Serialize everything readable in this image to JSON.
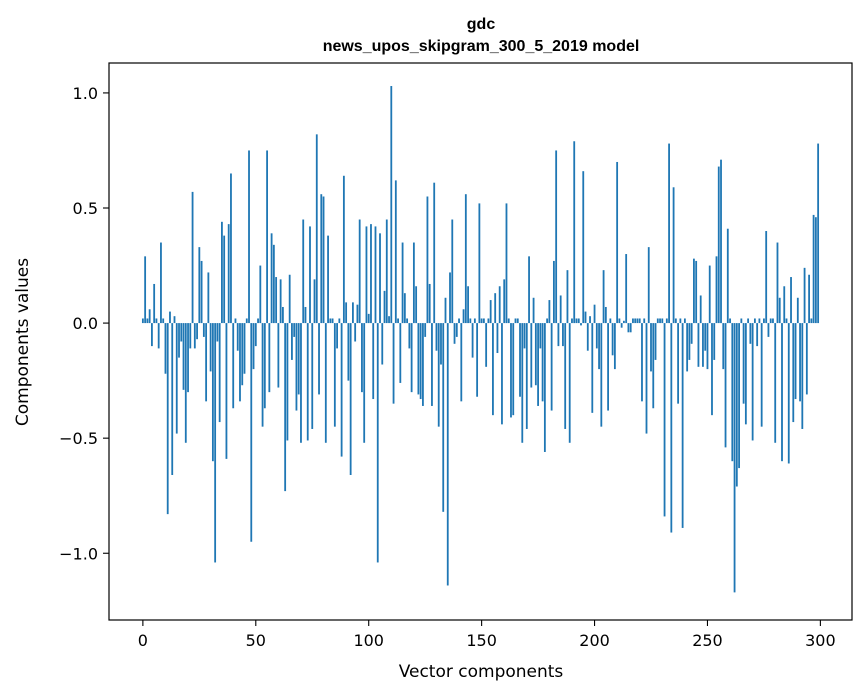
{
  "chart_data": {
    "type": "bar",
    "title_line1": "gdc",
    "title_line2": "news_upos_skipgram_300_5_2019 model",
    "xlabel": "Vector components",
    "ylabel": "Components values",
    "xlim": [
      -15,
      314
    ],
    "ylim": [
      -1.29,
      1.13
    ],
    "xticks": [
      0,
      50,
      100,
      150,
      200,
      250,
      300
    ],
    "xtick_labels": [
      "0",
      "50",
      "100",
      "150",
      "200",
      "250",
      "300"
    ],
    "yticks": [
      -1.0,
      -0.5,
      0.0,
      0.5,
      1.0
    ],
    "ytick_labels": [
      "−1.0",
      "−0.5",
      "0.0",
      "0.5",
      "1.0"
    ],
    "bar_color": "#1f77b4",
    "values": [
      0.02,
      0.29,
      0.02,
      0.06,
      -0.1,
      0.17,
      0.02,
      -0.11,
      0.35,
      0.02,
      -0.22,
      -0.83,
      0.05,
      -0.66,
      0.03,
      -0.48,
      -0.15,
      -0.08,
      -0.29,
      -0.52,
      -0.3,
      -0.11,
      0.57,
      -0.11,
      -0.07,
      0.33,
      0.27,
      -0.06,
      -0.34,
      0.22,
      -0.21,
      -0.6,
      -1.04,
      -0.08,
      -0.43,
      0.44,
      0.38,
      -0.59,
      0.43,
      0.65,
      -0.37,
      0.02,
      -0.12,
      -0.34,
      -0.27,
      -0.22,
      0.02,
      0.75,
      -0.95,
      -0.2,
      -0.1,
      0.02,
      0.25,
      -0.45,
      -0.37,
      0.75,
      -0.3,
      0.39,
      0.34,
      0.2,
      -0.28,
      0.19,
      0.07,
      -0.73,
      -0.51,
      0.21,
      -0.16,
      -0.06,
      -0.38,
      -0.31,
      -0.52,
      0.45,
      0.07,
      -0.51,
      0.42,
      -0.46,
      0.19,
      0.82,
      -0.31,
      0.56,
      0.55,
      -0.52,
      0.38,
      0.02,
      0.02,
      -0.45,
      -0.11,
      0.02,
      -0.58,
      0.64,
      0.09,
      -0.25,
      -0.66,
      0.09,
      -0.08,
      0.08,
      0.45,
      -0.3,
      -0.52,
      0.42,
      0.04,
      0.43,
      -0.33,
      0.42,
      -1.04,
      0.39,
      -0.18,
      0.14,
      0.45,
      0.03,
      1.03,
      -0.35,
      0.62,
      0.02,
      -0.26,
      0.35,
      0.13,
      0.02,
      -0.11,
      -0.3,
      0.35,
      0.16,
      -0.31,
      -0.33,
      -0.36,
      -0.06,
      0.55,
      0.17,
      -0.36,
      0.61,
      -0.12,
      -0.45,
      -0.18,
      -0.82,
      0.11,
      -1.14,
      0.22,
      0.45,
      -0.09,
      -0.06,
      0.02,
      -0.34,
      0.06,
      0.56,
      0.16,
      0.02,
      -0.15,
      0.02,
      -0.32,
      0.52,
      0.02,
      0.02,
      -0.19,
      0.02,
      0.1,
      -0.4,
      0.13,
      -0.13,
      0.16,
      -0.44,
      0.19,
      0.52,
      0.02,
      -0.41,
      -0.4,
      0.02,
      0.02,
      -0.32,
      -0.52,
      -0.11,
      -0.46,
      0.29,
      -0.28,
      0.11,
      -0.27,
      -0.36,
      -0.11,
      -0.34,
      -0.56,
      0.02,
      0.1,
      -0.38,
      0.27,
      0.75,
      -0.1,
      0.12,
      -0.1,
      -0.46,
      0.23,
      -0.52,
      0.02,
      0.79,
      0.02,
      0.02,
      -0.01,
      0.66,
      0.05,
      -0.12,
      0.03,
      -0.39,
      0.08,
      -0.11,
      -0.2,
      -0.45,
      0.23,
      0.07,
      -0.38,
      0.02,
      -0.14,
      -0.2,
      0.7,
      0.02,
      -0.02,
      0.01,
      0.3,
      -0.04,
      -0.04,
      0.02,
      0.02,
      0.02,
      0.02,
      -0.34,
      0.02,
      -0.48,
      0.33,
      -0.21,
      -0.37,
      -0.16,
      0.02,
      0.02,
      0.02,
      -0.84,
      0.02,
      0.78,
      -0.91,
      0.59,
      0.02,
      -0.35,
      0.02,
      -0.89,
      0.02,
      -0.21,
      -0.16,
      -0.09,
      0.28,
      0.27,
      -0.19,
      0.12,
      -0.19,
      -0.12,
      -0.2,
      0.25,
      -0.4,
      -0.16,
      0.29,
      0.68,
      0.71,
      -0.2,
      -0.54,
      0.41,
      0.02,
      -0.6,
      -1.17,
      -0.71,
      -0.63,
      0.02,
      -0.35,
      -0.44,
      0.02,
      -0.09,
      -0.51,
      0.02,
      -0.1,
      0.02,
      -0.45,
      0.02,
      0.4,
      -0.06,
      0.02,
      0.02,
      -0.52,
      0.35,
      0.11,
      -0.6,
      0.16,
      0.02,
      -0.61,
      0.2,
      -0.43,
      -0.33,
      0.11,
      -0.34,
      -0.46,
      0.24,
      -0.31,
      0.21,
      0.02,
      0.47,
      0.46,
      0.78
    ]
  }
}
